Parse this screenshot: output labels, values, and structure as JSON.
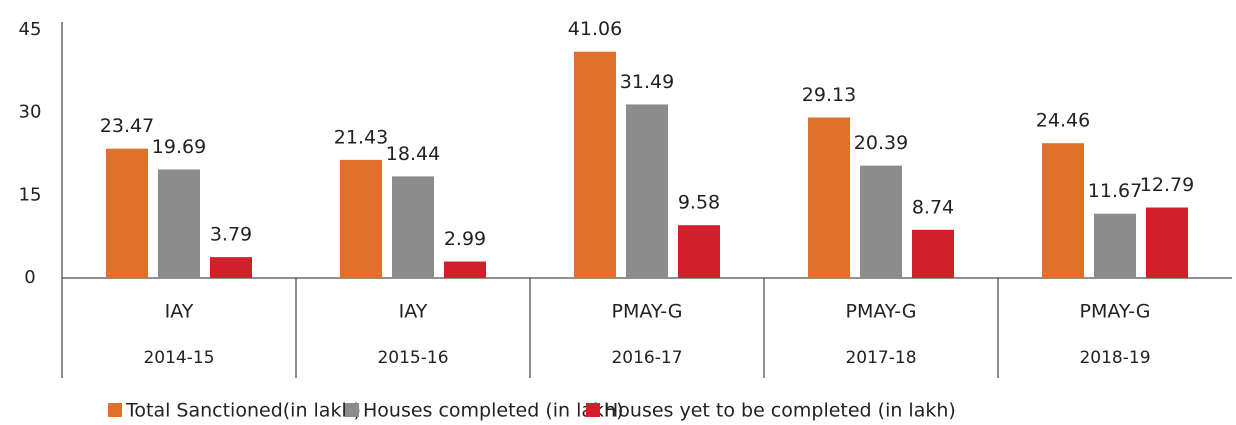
{
  "chart_data": {
    "type": "bar",
    "categories": [
      "IAY",
      "IAY",
      "PMAY-G",
      "PMAY-G",
      "PMAY-G"
    ],
    "years": [
      "2014-15",
      "2015-16",
      "2016-17",
      "2017-18",
      "2018-19"
    ],
    "series": [
      {
        "name": "Total Sanctioned(in lakh)",
        "color": "#e0702a",
        "values": [
          23.47,
          21.43,
          41.06,
          29.13,
          24.46
        ]
      },
      {
        "name": "Houses completed (in lakh)",
        "color": "#8c8c8c",
        "values": [
          19.69,
          18.44,
          31.49,
          20.39,
          11.67
        ]
      },
      {
        "name": "Houses yet to be completed (in lakh)",
        "color": "#d1202a",
        "values": [
          3.79,
          2.99,
          9.58,
          8.74,
          12.79
        ]
      }
    ],
    "ylim": [
      0,
      45
    ],
    "yticks": [
      0,
      15,
      30,
      45
    ],
    "grid": false,
    "legend": "bottom"
  }
}
